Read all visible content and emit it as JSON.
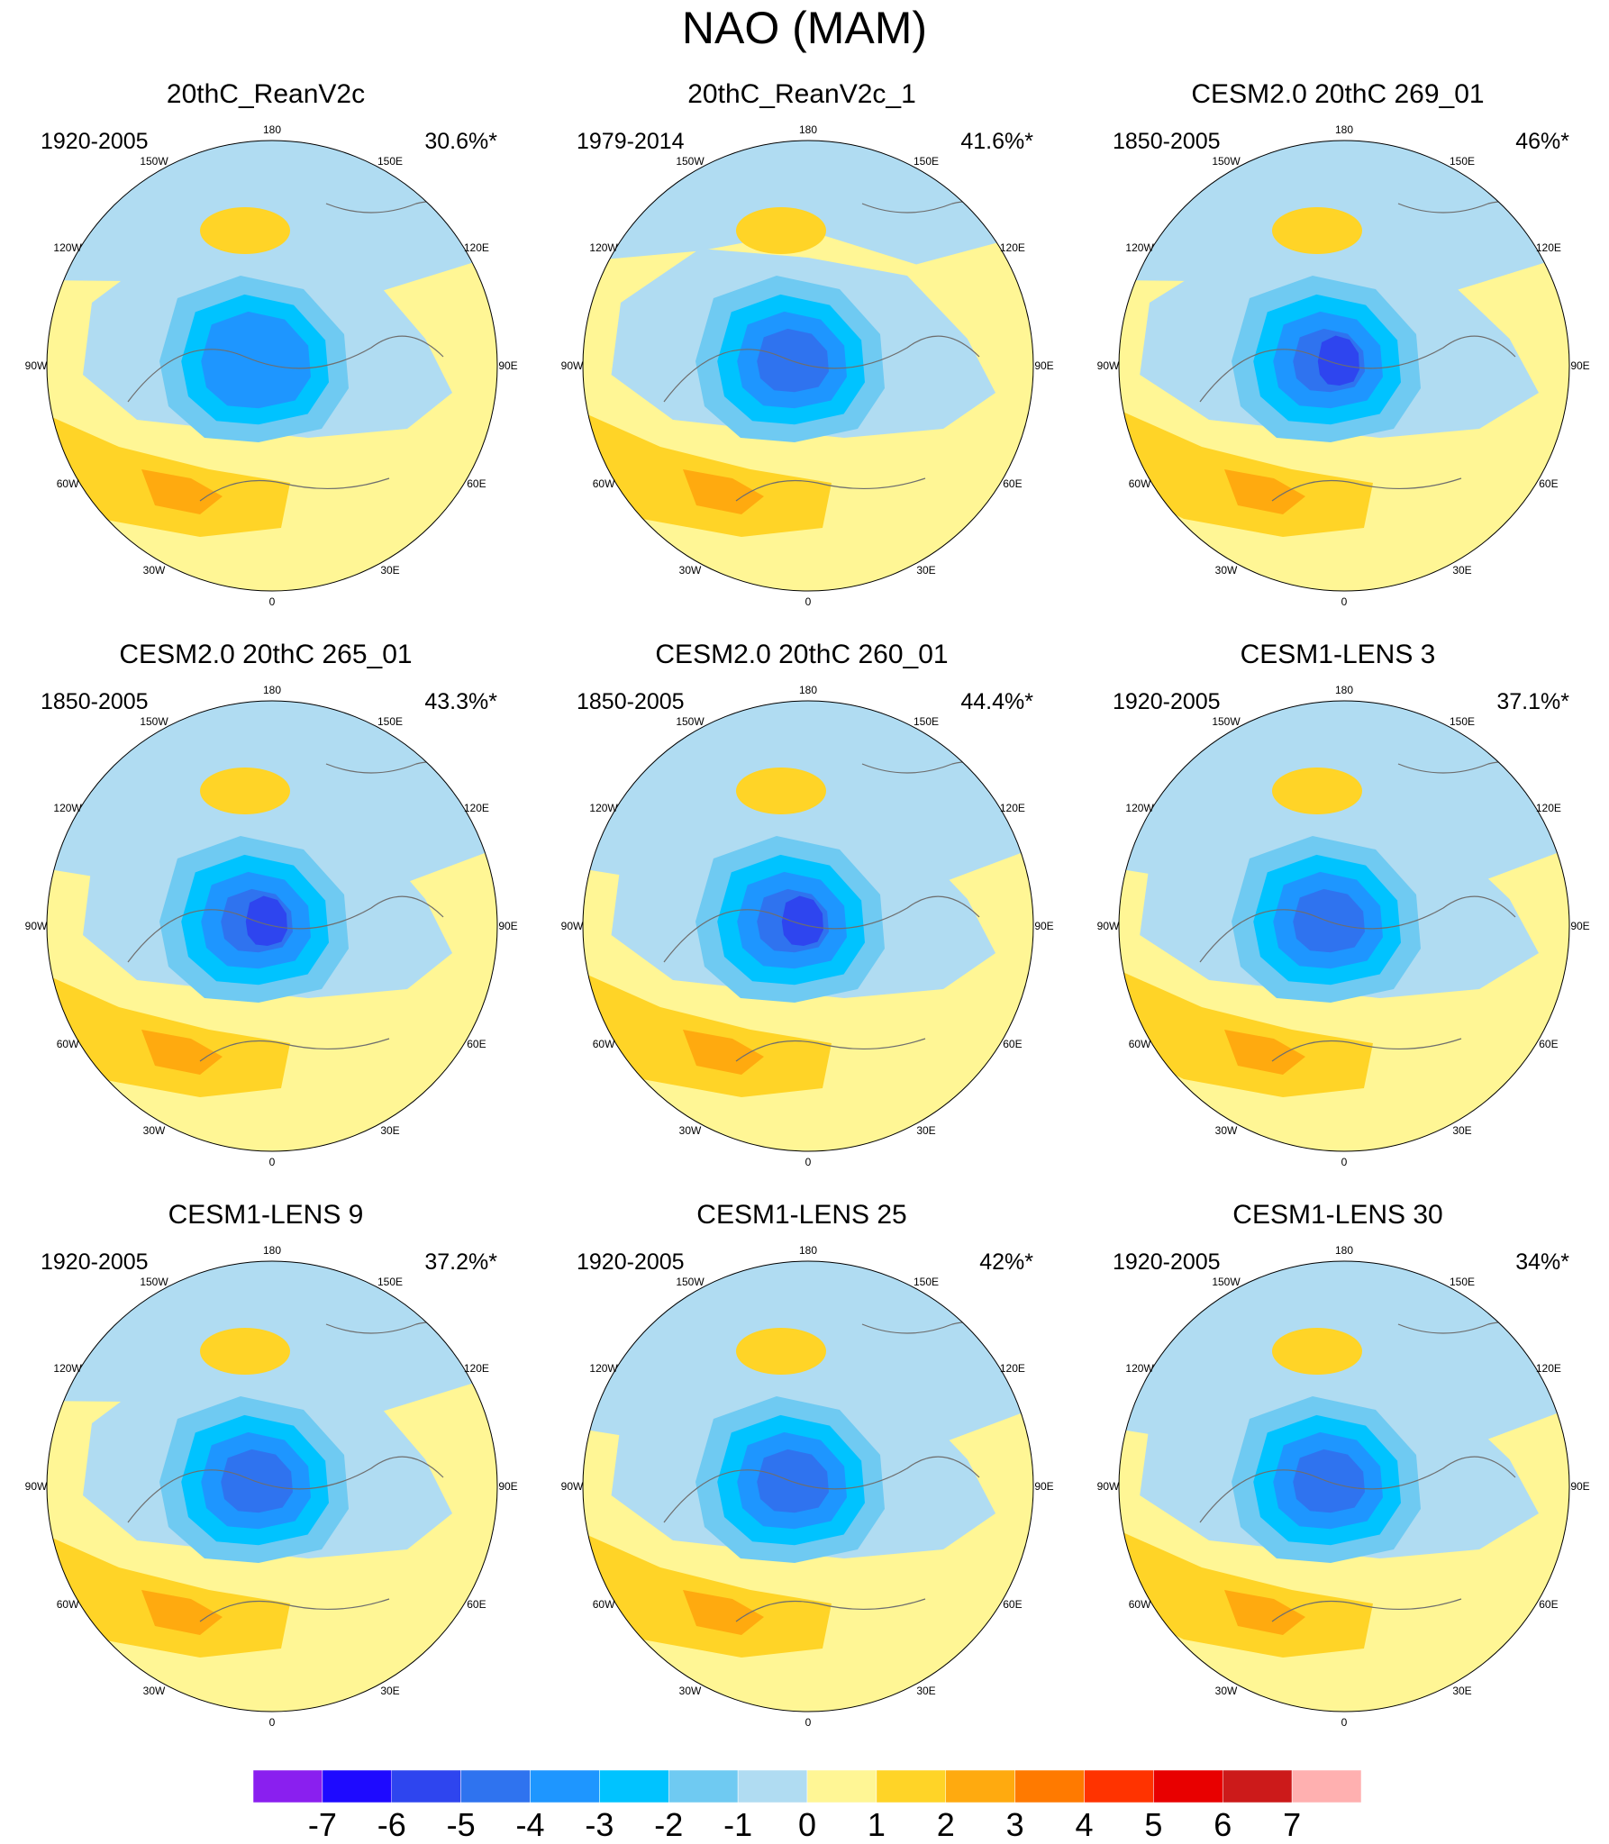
{
  "title": "NAO (MAM)",
  "panels": [
    {
      "title": "20thC_ReanV2c",
      "period": "1920-2005",
      "variance": "30.6%*"
    },
    {
      "title": "20thC_ReanV2c_1",
      "period": "1979-2014",
      "variance": "41.6%*"
    },
    {
      "title": "CESM2.0 20thC 269_01",
      "period": "1850-2005",
      "variance": "46%*"
    },
    {
      "title": "CESM2.0 20thC 265_01",
      "period": "1850-2005",
      "variance": "43.3%*"
    },
    {
      "title": "CESM2.0 20thC 260_01",
      "period": "1850-2005",
      "variance": "44.4%*"
    },
    {
      "title": "CESM1-LENS 3",
      "period": "1920-2005",
      "variance": "37.1%*"
    },
    {
      "title": "CESM1-LENS 9",
      "period": "1920-2005",
      "variance": "37.2%*"
    },
    {
      "title": "CESM1-LENS 25",
      "period": "1920-2005",
      "variance": "42%*"
    },
    {
      "title": "CESM1-LENS 30",
      "period": "1920-2005",
      "variance": "34%*"
    }
  ],
  "longitude_labels": [
    "180",
    "150E",
    "120E",
    "90E",
    "60E",
    "30E",
    "0",
    "30W",
    "60W",
    "90W",
    "120W",
    "150W"
  ],
  "colorbar": {
    "labels": [
      "-7",
      "-6",
      "-5",
      "-4",
      "-3",
      "-2",
      "-1",
      "0",
      "1",
      "2",
      "3",
      "4",
      "5",
      "6",
      "7"
    ],
    "colors": [
      "#8a1fef",
      "#1e0aff",
      "#2e45ef",
      "#2f73ef",
      "#1e96ff",
      "#00c3ff",
      "#6fcaf2",
      "#b0dcf2",
      "#fff695",
      "#ffd427",
      "#ffaa0f",
      "#ff7a00",
      "#ff3300",
      "#e80000",
      "#cc1a1a",
      "#ffb0b0"
    ]
  },
  "palette": {
    "land_outline": "#6e6e6e",
    "circle_outline": "#000000"
  }
}
